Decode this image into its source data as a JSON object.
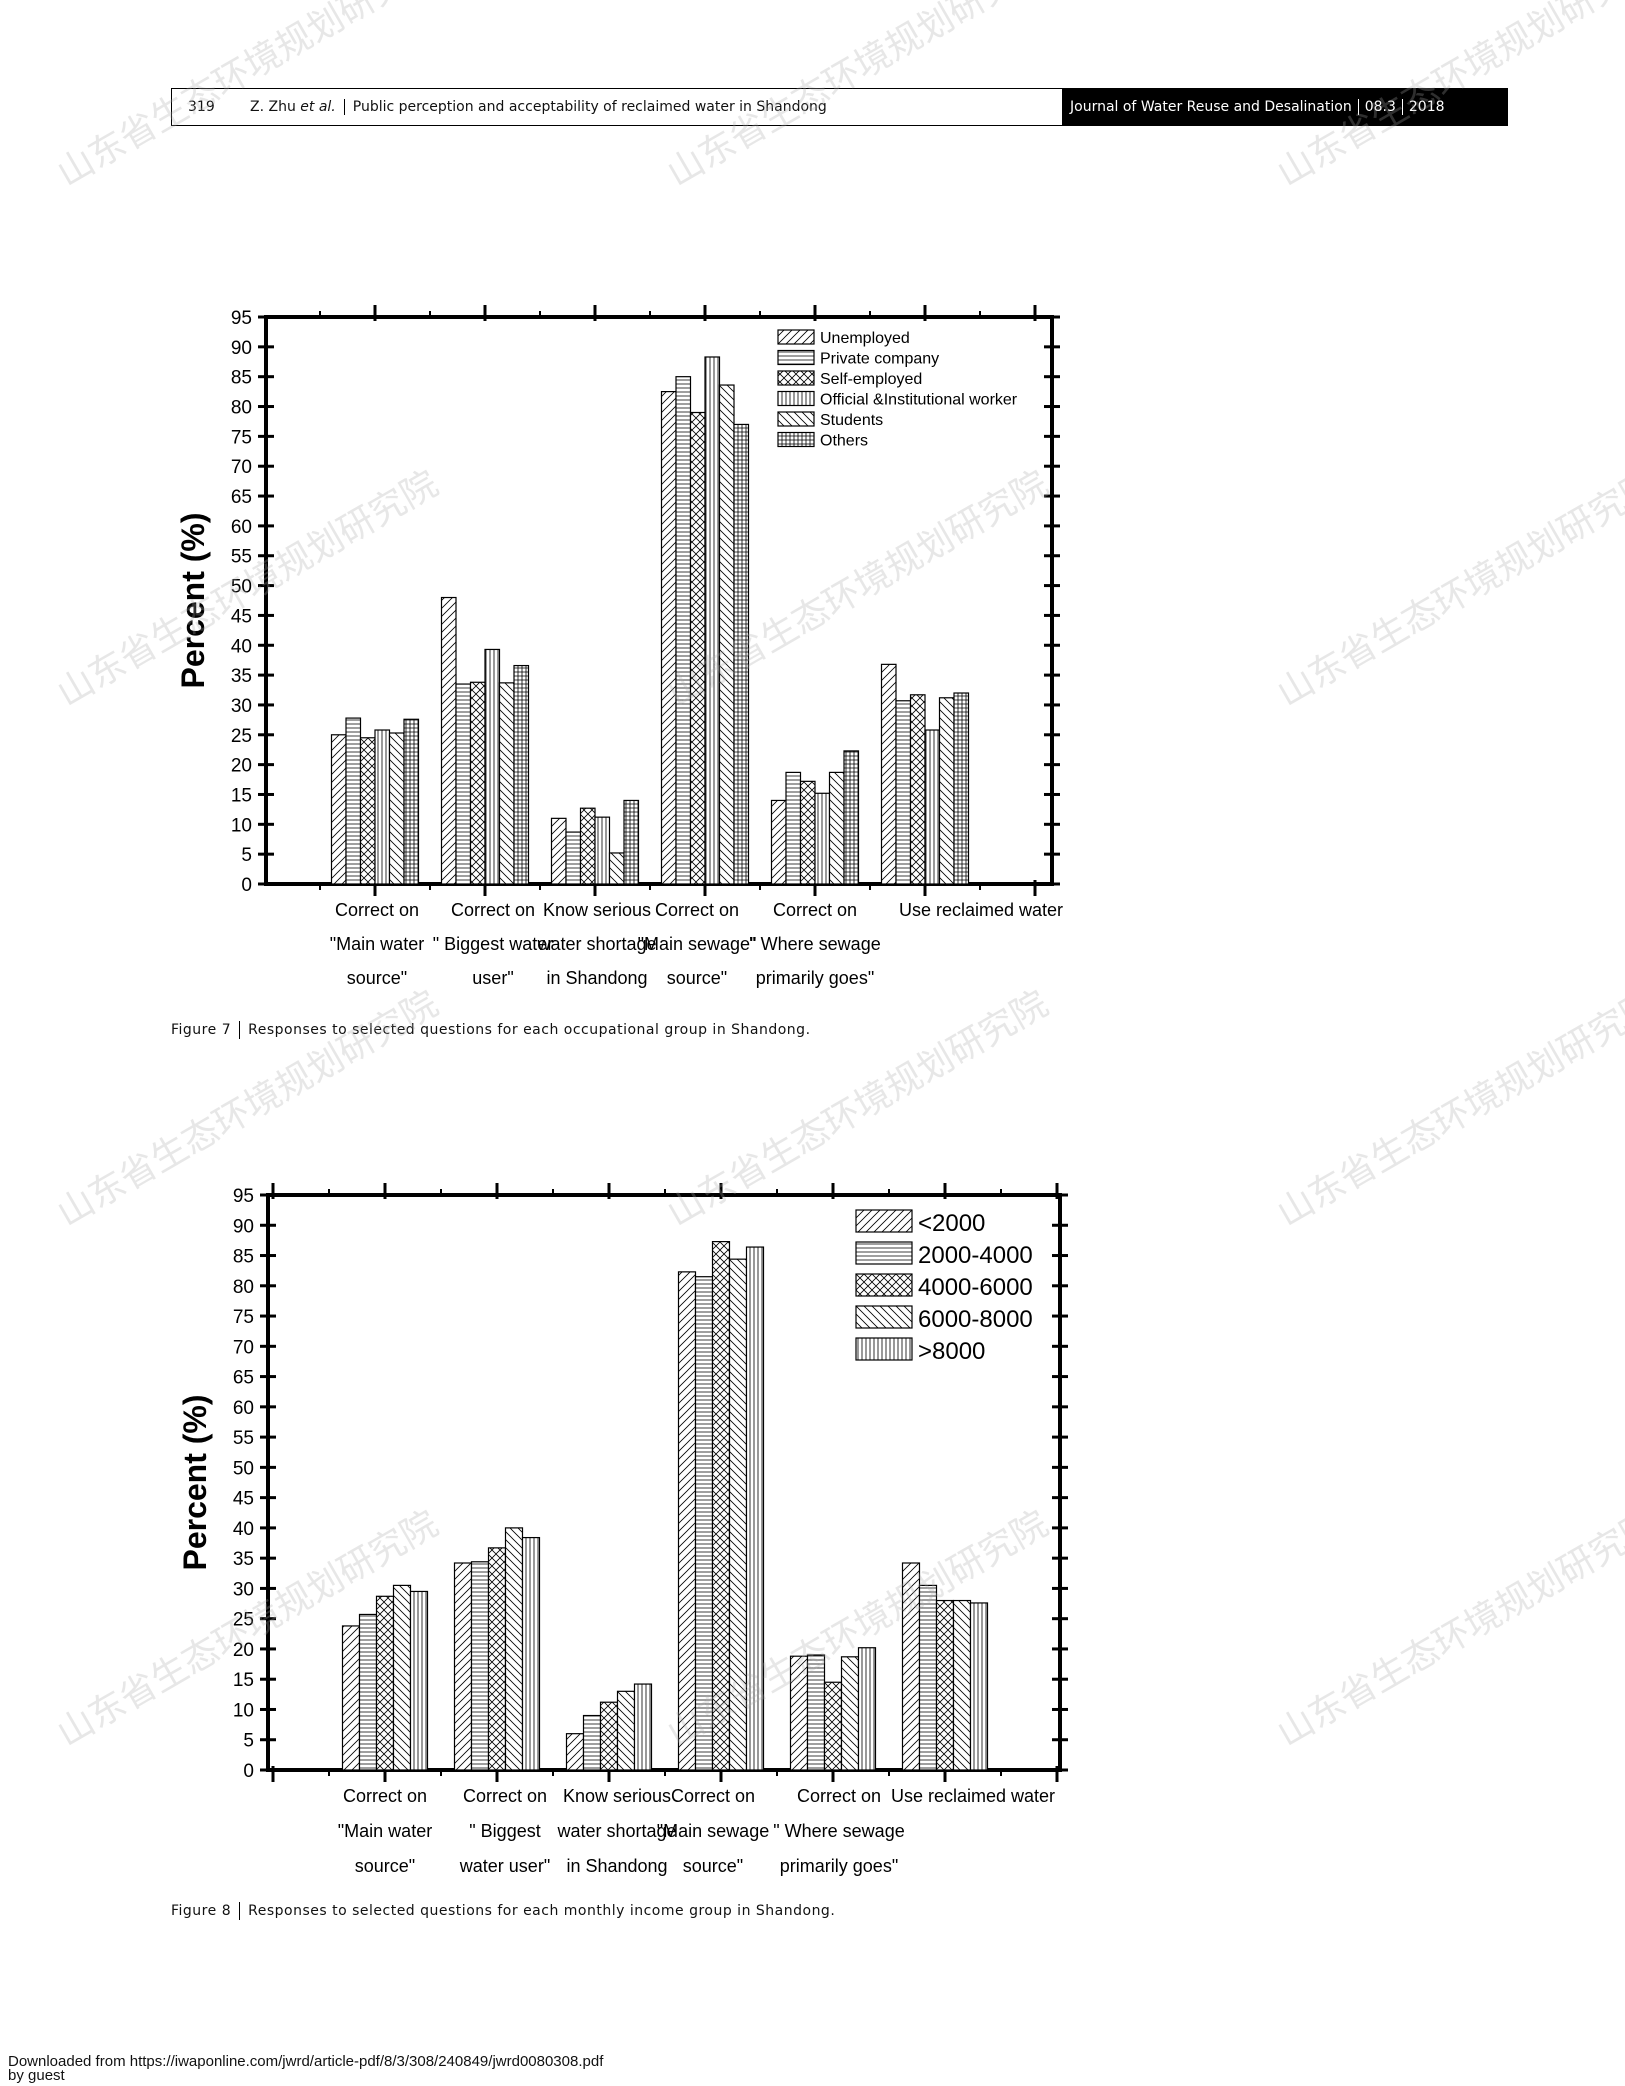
{
  "header": {
    "page_number": "319",
    "authors_prefix": "Z. Zhu ",
    "authors_etal": "et al.",
    "article_title": "Public perception and acceptability of reclaimed water in Shandong",
    "journal": "Journal of Water Reuse and Desalination",
    "issue": "08.3",
    "year": "2018"
  },
  "figure7": {
    "label": "Figure 7",
    "caption": "Responses to selected questions for each occupational group in Shandong."
  },
  "figure8": {
    "label": "Figure 8",
    "caption": "Responses to selected questions for each monthly income group in Shandong."
  },
  "watermark": "山东省生态环境规划研究院",
  "footer": {
    "line1": "Downloaded from https://iwaponline.com/jwrd/article-pdf/8/3/308/240849/jwrd0080308.pdf",
    "line2": "by guest"
  },
  "chart_data": [
    {
      "type": "bar",
      "ylabel": "Percent  (%)",
      "xlabel": "",
      "ylim": [
        0,
        95
      ],
      "yticks": [
        0,
        5,
        10,
        15,
        20,
        25,
        30,
        35,
        40,
        45,
        50,
        55,
        60,
        65,
        70,
        75,
        80,
        85,
        90,
        95
      ],
      "grid": false,
      "legend_position": "top-right",
      "categories": [
        [
          "Correct on",
          "\"Main water",
          "source\""
        ],
        [
          "Correct on",
          "\" Biggest water",
          "user\""
        ],
        [
          "Know serious",
          "water shortage",
          "in Shandong"
        ],
        [
          "Correct on",
          "\"Main sewage\"",
          "source\""
        ],
        [
          "Correct on",
          "\" Where sewage",
          "primarily goes\""
        ],
        [
          "Use reclaimed water"
        ]
      ],
      "series": [
        {
          "name": "Unemployed",
          "pattern": "diag-right",
          "values": [
            25.0,
            48.0,
            11.0,
            82.5,
            14.0,
            36.8
          ]
        },
        {
          "name": "Private company",
          "pattern": "horizontal",
          "values": [
            27.8,
            33.5,
            8.7,
            85.0,
            18.7,
            30.7
          ]
        },
        {
          "name": "Self-employed",
          "pattern": "crosshatch",
          "values": [
            24.5,
            33.8,
            12.7,
            79.0,
            17.2,
            31.7
          ]
        },
        {
          "name": "Official &Institutional worker",
          "pattern": "vertical",
          "values": [
            25.8,
            39.3,
            11.2,
            88.3,
            15.2,
            25.8
          ]
        },
        {
          "name": "Students",
          "pattern": "diag-left",
          "values": [
            25.3,
            33.7,
            5.2,
            83.6,
            18.7,
            31.2
          ]
        },
        {
          "name": "Others",
          "pattern": "grid",
          "values": [
            27.6,
            36.6,
            14.0,
            77.0,
            22.3,
            32.0
          ]
        }
      ]
    },
    {
      "type": "bar",
      "ylabel": "Percent  (%)",
      "xlabel": "",
      "ylim": [
        0,
        95
      ],
      "yticks": [
        0,
        5,
        10,
        15,
        20,
        25,
        30,
        35,
        40,
        45,
        50,
        55,
        60,
        65,
        70,
        75,
        80,
        85,
        90,
        95
      ],
      "grid": false,
      "legend_position": "top-right",
      "categories": [
        [
          "Correct on",
          "\"Main water",
          "source\""
        ],
        [
          "Correct on",
          "\" Biggest",
          "water user\""
        ],
        [
          "Know serious",
          "water shortage",
          "in Shandong"
        ],
        [
          "Correct on",
          "\"Main sewage",
          "source\""
        ],
        [
          "Correct on",
          "\" Where sewage",
          "primarily goes\""
        ],
        [
          "Use reclaimed water"
        ]
      ],
      "series": [
        {
          "name": "<2000",
          "pattern": "diag-right",
          "values": [
            23.8,
            34.2,
            6.0,
            82.3,
            18.8,
            34.2
          ]
        },
        {
          "name": "2000-4000",
          "pattern": "horizontal",
          "values": [
            25.7,
            34.4,
            9.0,
            81.5,
            19.0,
            30.5
          ]
        },
        {
          "name": "4000-6000",
          "pattern": "crosshatch",
          "values": [
            28.7,
            36.7,
            11.2,
            87.3,
            14.5,
            28.0
          ]
        },
        {
          "name": "6000-8000",
          "pattern": "diag-left",
          "values": [
            30.5,
            40.0,
            13.0,
            84.4,
            18.7,
            28.0
          ]
        },
        {
          "name": ">8000",
          "pattern": "vertical",
          "values": [
            29.5,
            38.4,
            14.2,
            86.4,
            20.2,
            27.6
          ]
        }
      ]
    }
  ]
}
